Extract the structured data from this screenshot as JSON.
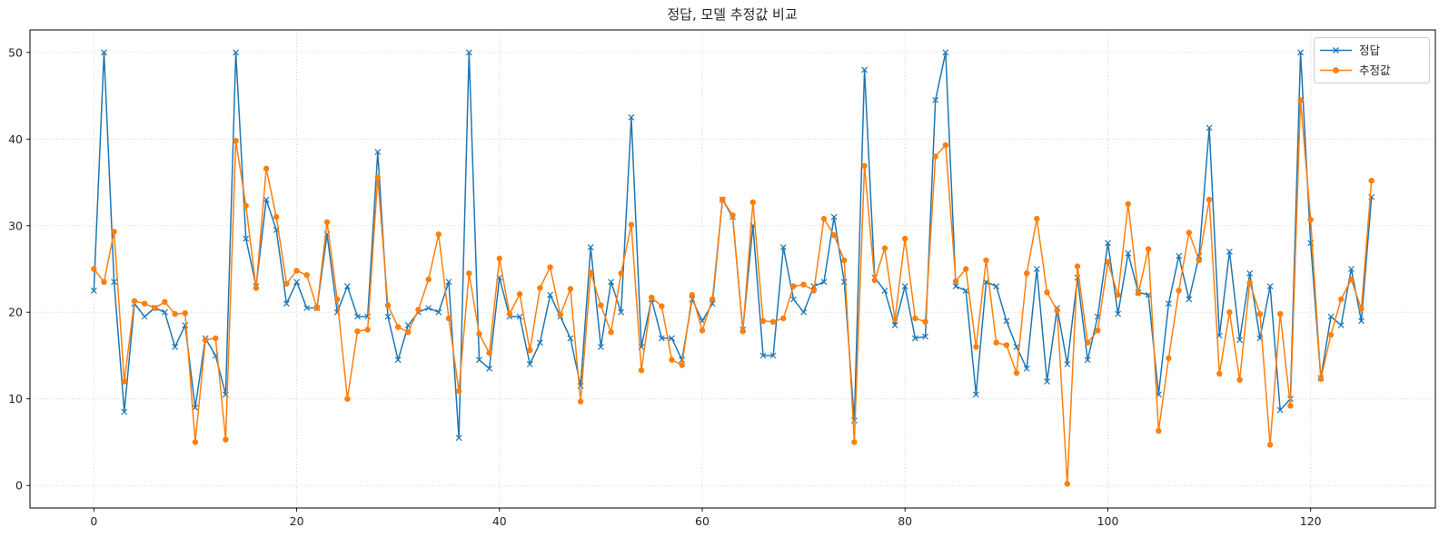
{
  "figure": {
    "background": "#ffffff"
  },
  "chart_data": {
    "type": "line",
    "title": "정답, 모델 추정값 비교",
    "xlabel": "",
    "ylabel": "",
    "x_start": 0,
    "x_step": 1,
    "xticks": [
      0,
      20,
      40,
      60,
      80,
      100,
      120
    ],
    "yticks": [
      0,
      10,
      20,
      30,
      40,
      50
    ],
    "xlim": [
      -6.3,
      132.3
    ],
    "ylim": [
      -2.6,
      52.6
    ],
    "grid": true,
    "grid_color": "#c7c7c7",
    "spine_color": "#000000",
    "tick_label_color": "#262626",
    "legend_position": "upper right",
    "series": [
      {
        "name": "정답",
        "color": "#1f77b4",
        "marker": "x",
        "values": [
          22.5,
          50,
          23.5,
          8.5,
          21,
          19.5,
          20.5,
          20,
          16,
          18.5,
          9,
          17,
          15,
          10.5,
          50,
          28.5,
          23,
          33,
          29.5,
          21,
          23.5,
          20.5,
          20.5,
          29,
          20,
          23,
          19.5,
          19.5,
          38.5,
          19.5,
          14.5,
          18.5,
          20,
          20.5,
          20,
          23.5,
          5.5,
          50,
          14.5,
          13.5,
          24,
          19.5,
          19.5,
          14,
          16.5,
          22,
          19.5,
          17,
          11.5,
          27.5,
          16,
          23.5,
          20,
          42.5,
          16,
          21.5,
          17,
          17,
          14.5,
          21.5,
          19,
          21,
          33,
          31,
          18,
          30,
          15,
          15,
          27.5,
          21.5,
          20,
          23,
          23.5,
          31,
          23.5,
          7.5,
          48,
          24,
          22.5,
          18.5,
          23,
          17,
          17.2,
          44.5,
          50,
          23,
          22.5,
          10.5,
          23.5,
          23,
          19,
          16,
          13.5,
          25,
          12,
          20.5,
          14,
          24,
          14.5,
          19.5,
          28,
          19.8,
          26.8,
          22.3,
          22,
          10.5,
          21,
          26.5,
          21.5,
          26.5,
          41.3,
          17.3,
          27,
          16.8,
          24.5,
          17,
          23,
          8.7,
          10,
          50,
          28,
          12.4,
          19.5,
          18.5,
          25,
          19,
          33.3
        ]
      },
      {
        "name": "추정값",
        "color": "#ff7f0e",
        "marker": "circle",
        "values": [
          25,
          23.5,
          29.3,
          12,
          21.3,
          21,
          20.5,
          21.2,
          19.8,
          19.9,
          5,
          16.8,
          17,
          5.3,
          39.8,
          32.3,
          22.8,
          36.6,
          31,
          23.3,
          24.8,
          24.3,
          20.5,
          30.4,
          21.5,
          10,
          17.8,
          18,
          35.6,
          20.8,
          18.3,
          17.7,
          20.3,
          23.8,
          29,
          19.3,
          10.9,
          24.5,
          17.5,
          15.3,
          26.2,
          19.8,
          22.1,
          15.6,
          22.8,
          25.2,
          19.7,
          22.7,
          9.7,
          24.6,
          20.8,
          17.7,
          24.5,
          30.1,
          13.3,
          21.7,
          20.7,
          14.5,
          13.9,
          22,
          17.9,
          21.5,
          33,
          31.2,
          17.8,
          32.7,
          19,
          18.9,
          19.3,
          23,
          23.2,
          22.5,
          30.8,
          28.9,
          26,
          5,
          36.9,
          23.7,
          27.4,
          19.2,
          28.5,
          19.3,
          18.9,
          38,
          39.3,
          23.6,
          25,
          16,
          26,
          16.5,
          16.2,
          13,
          24.5,
          30.8,
          22.3,
          20.2,
          0.2,
          25.3,
          16.5,
          17.9,
          25.8,
          22,
          32.5,
          22.2,
          27.3,
          6.3,
          14.7,
          22.5,
          29.2,
          26,
          33,
          12.9,
          20,
          12.2,
          23.4,
          19.8,
          4.7,
          19.8,
          9.2,
          44.5,
          30.7,
          12.3,
          17.4,
          21.5,
          23.8,
          20.4,
          35.2
        ]
      }
    ]
  }
}
